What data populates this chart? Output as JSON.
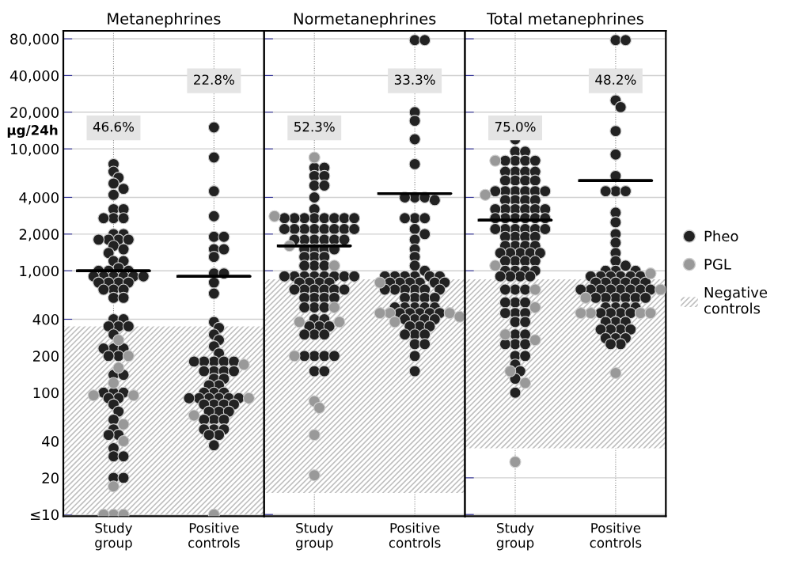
{
  "chart_data": [
    {
      "type": "scatter",
      "title": "Metanephrines",
      "ylabel": "µg/24h",
      "categories": [
        "Study group",
        "Positive controls"
      ],
      "log": true,
      "grid": true,
      "legend": false,
      "marker": "circle",
      "ylim": [
        9.7,
        93000
      ],
      "yticks": [
        {
          "value": 10,
          "label": "≤10"
        },
        20,
        40,
        100,
        200,
        400,
        {
          "value": 1000,
          "label": "1,000"
        },
        {
          "value": 2000,
          "label": "2,000"
        },
        {
          "value": 4000,
          "label": "4,000"
        },
        {
          "value": 10000,
          "label": "10,000"
        },
        {
          "value": 20000,
          "label": "20,000"
        },
        {
          "value": 40000,
          "label": "40,000"
        },
        {
          "value": 80000,
          "label": "80,000"
        }
      ],
      "series": [
        {
          "color": "#222222",
          "x": [
            "Study group",
            "Study group",
            "Study group",
            "Study group",
            "Study group",
            "Study group",
            "Study group",
            "Study group",
            "Study group",
            "Study group",
            "Study group",
            "Study group",
            "Study group",
            "Study group",
            "Study group",
            "Study group",
            "Study group",
            "Study group",
            "Study group",
            "Study group",
            "Study group",
            "Study group",
            "Study group",
            "Study group",
            "Study group",
            "Study group",
            "Study group",
            "Study group",
            "Study group",
            "Study group",
            "Study group",
            "Study group",
            "Study group",
            "Study group",
            "Study group",
            "Study group",
            "Study group",
            "Study group",
            "Study group",
            "Study group",
            "Study group",
            "Study group",
            "Study group",
            "Study group",
            "Study group",
            "Study group",
            "Study group",
            "Study group",
            "Study group",
            "Study group",
            "Study group",
            "Study group",
            "Study group",
            "Study group",
            "Study group",
            "Study group",
            "Study group",
            "Study group",
            "Study group",
            "Study group",
            "Study group",
            "Study group",
            "Study group",
            "Study group",
            "Study group",
            "Study group",
            "Study group",
            "Study group",
            "Study group",
            "Study group",
            "Positive controls",
            "Positive controls",
            "Positive controls",
            "Positive controls",
            "Positive controls",
            "Positive controls",
            "Positive controls",
            "Positive controls",
            "Positive controls",
            "Positive controls",
            "Positive controls",
            "Positive controls",
            "Positive controls",
            "Positive controls",
            "Positive controls",
            "Positive controls",
            "Positive controls",
            "Positive controls",
            "Positive controls",
            "Positive controls",
            "Positive controls",
            "Positive controls",
            "Positive controls",
            "Positive controls",
            "Positive controls",
            "Positive controls",
            "Positive controls",
            "Positive controls",
            "Positive controls",
            "Positive controls",
            "Positive controls",
            "Positive controls",
            "Positive controls",
            "Positive controls",
            "Positive controls",
            "Positive controls",
            "Positive controls",
            "Positive controls",
            "Positive controls",
            "Positive controls",
            "Positive controls",
            "Positive controls",
            "Positive controls",
            "Positive controls",
            "Positive controls",
            "Positive controls",
            "Positive controls",
            "Positive controls",
            "Positive controls",
            "Positive controls",
            "Positive controls",
            "Positive controls",
            "Positive controls",
            "Positive controls",
            "Positive controls",
            "Positive controls",
            "Positive controls"
          ],
          "values": [
            7500,
            6500,
            5800,
            5200,
            4700,
            4200,
            3200,
            3200,
            2700,
            2700,
            2700,
            2000,
            2000,
            1800,
            1800,
            1800,
            1800,
            1600,
            1500,
            1400,
            1200,
            1200,
            1050,
            1000,
            1000,
            1000,
            900,
            900,
            900,
            900,
            900,
            900,
            800,
            800,
            800,
            800,
            700,
            700,
            700,
            600,
            600,
            400,
            400,
            350,
            350,
            350,
            300,
            230,
            230,
            230,
            200,
            200,
            140,
            140,
            100,
            100,
            100,
            90,
            90,
            80,
            70,
            60,
            50,
            45,
            45,
            35,
            30,
            30,
            20,
            20,
            15000,
            8500,
            4500,
            2800,
            1900,
            1900,
            1500,
            1500,
            1300,
            950,
            950,
            800,
            650,
            380,
            340,
            300,
            270,
            240,
            210,
            180,
            180,
            180,
            180,
            180,
            150,
            150,
            150,
            150,
            130,
            130,
            115,
            115,
            100,
            100,
            100,
            90,
            90,
            90,
            90,
            90,
            90,
            80,
            80,
            80,
            80,
            70,
            70,
            70,
            60,
            60,
            60,
            50,
            50,
            50,
            45,
            45,
            37
          ]
        },
        {
          "color": "#999999",
          "x": [
            "Study group",
            "Study group",
            "Study group",
            "Study group",
            "Study group",
            "Study group",
            "Study group",
            "Study group",
            "Study group",
            "Study group",
            "Study group",
            "Study group",
            "Positive controls",
            "Positive controls",
            "Positive controls",
            "Positive controls"
          ],
          "values": [
            270,
            200,
            160,
            120,
            95,
            95,
            55,
            40,
            17,
            10,
            10,
            10,
            170,
            90,
            65,
            10
          ]
        },
        {
          "type": "box",
          "color": "#000000",
          "boxes": [
            {
              "low": 1000,
              "q1": 1000,
              "median": 1000,
              "q3": 1000,
              "high": 1000
            },
            {
              "low": 900,
              "q1": 900,
              "median": 900,
              "q3": 900,
              "high": 900
            }
          ]
        }
      ],
      "bands": [
        {
          "axis": "y",
          "from": 10,
          "to": 350,
          "color": "#c0c0c0"
        }
      ],
      "annotations": [
        "46.6%",
        "22.8%"
      ]
    },
    {
      "type": "scatter",
      "title": "Normetanephrines",
      "categories": [
        "Study group",
        "Positive controls"
      ],
      "log": true,
      "grid": true,
      "legend": false,
      "marker": "circle",
      "tick_labels": "x",
      "ylim": [
        9.7,
        93000
      ],
      "yticks": [
        10,
        20,
        40,
        100,
        200,
        400,
        1000,
        2000,
        4000,
        10000,
        20000,
        40000,
        80000
      ],
      "series": [
        {
          "color": "#222222",
          "x": [
            "Study group",
            "Study group",
            "Study group",
            "Study group",
            "Study group",
            "Study group",
            "Study group",
            "Study group",
            "Study group",
            "Study group",
            "Study group",
            "Study group",
            "Study group",
            "Study group",
            "Study group",
            "Study group",
            "Study group",
            "Study group",
            "Study group",
            "Study group",
            "Study group",
            "Study group",
            "Study group",
            "Study group",
            "Study group",
            "Study group",
            "Study group",
            "Study group",
            "Study group",
            "Study group",
            "Study group",
            "Study group",
            "Study group",
            "Study group",
            "Study group",
            "Study group",
            "Study group",
            "Study group",
            "Study group",
            "Study group",
            "Study group",
            "Study group",
            "Study group",
            "Study group",
            "Study group",
            "Study group",
            "Study group",
            "Study group",
            "Study group",
            "Study group",
            "Study group",
            "Study group",
            "Study group",
            "Study group",
            "Study group",
            "Study group",
            "Study group",
            "Study group",
            "Study group",
            "Study group",
            "Study group",
            "Study group",
            "Study group",
            "Study group",
            "Study group",
            "Study group",
            "Study group",
            "Study group",
            "Study group",
            "Study group",
            "Study group",
            "Study group",
            "Study group",
            "Study group",
            "Study group",
            "Study group",
            "Study group",
            "Study group",
            "Study group",
            "Positive controls",
            "Positive controls",
            "Positive controls",
            "Positive controls",
            "Positive controls",
            "Positive controls",
            "Positive controls",
            "Positive controls",
            "Positive controls",
            "Positive controls",
            "Positive controls",
            "Positive controls",
            "Positive controls",
            "Positive controls",
            "Positive controls",
            "Positive controls",
            "Positive controls",
            "Positive controls",
            "Positive controls",
            "Positive controls",
            "Positive controls",
            "Positive controls",
            "Positive controls",
            "Positive controls",
            "Positive controls",
            "Positive controls",
            "Positive controls",
            "Positive controls",
            "Positive controls",
            "Positive controls",
            "Positive controls",
            "Positive controls",
            "Positive controls",
            "Positive controls",
            "Positive controls",
            "Positive controls",
            "Positive controls",
            "Positive controls",
            "Positive controls",
            "Positive controls",
            "Positive controls",
            "Positive controls",
            "Positive controls",
            "Positive controls",
            "Positive controls",
            "Positive controls",
            "Positive controls",
            "Positive controls",
            "Positive controls",
            "Positive controls",
            "Positive controls",
            "Positive controls",
            "Positive controls",
            "Positive controls",
            "Positive controls",
            "Positive controls",
            "Positive controls",
            "Positive controls",
            "Positive controls",
            "Positive controls",
            "Positive controls",
            "Positive controls",
            "Positive controls",
            "Positive controls",
            "Positive controls",
            "Positive controls"
          ],
          "values": [
            7000,
            7000,
            6000,
            6000,
            5000,
            5000,
            4000,
            3200,
            2700,
            2700,
            2700,
            2700,
            2700,
            2700,
            2700,
            2700,
            2200,
            2200,
            2200,
            2200,
            2200,
            2200,
            2200,
            2200,
            1800,
            1800,
            1800,
            1800,
            1800,
            1800,
            1500,
            1500,
            1500,
            1500,
            1300,
            1300,
            1300,
            1100,
            1100,
            1100,
            900,
            900,
            900,
            900,
            900,
            900,
            900,
            900,
            800,
            800,
            800,
            800,
            700,
            700,
            700,
            700,
            700,
            700,
            600,
            600,
            600,
            600,
            500,
            500,
            500,
            400,
            400,
            350,
            350,
            350,
            300,
            300,
            300,
            200,
            200,
            200,
            200,
            150,
            150,
            78000,
            78000,
            20000,
            17000,
            12000,
            7500,
            4000,
            4000,
            4000,
            3800,
            2700,
            2700,
            2700,
            2200,
            2000,
            1800,
            1500,
            1300,
            1100,
            1000,
            900,
            900,
            900,
            900,
            900,
            900,
            800,
            800,
            800,
            800,
            800,
            800,
            700,
            700,
            700,
            700,
            700,
            700,
            600,
            600,
            600,
            600,
            500,
            500,
            500,
            500,
            500,
            450,
            450,
            450,
            450,
            450,
            400,
            400,
            400,
            400,
            350,
            350,
            350,
            300,
            300,
            300,
            250,
            250,
            200,
            150
          ]
        },
        {
          "color": "#999999",
          "x": [
            "Study group",
            "Study group",
            "Study group",
            "Study group",
            "Study group",
            "Study group",
            "Study group",
            "Study group",
            "Study group",
            "Study group",
            "Study group",
            "Study group",
            "Positive controls",
            "Positive controls",
            "Positive controls",
            "Positive controls",
            "Positive controls",
            "Positive controls"
          ],
          "values": [
            8500,
            2800,
            1600,
            1100,
            500,
            380,
            380,
            200,
            85,
            75,
            45,
            21,
            800,
            450,
            450,
            450,
            420,
            380
          ]
        },
        {
          "type": "box",
          "color": "#000000",
          "boxes": [
            {
              "low": 1600,
              "q1": 1600,
              "median": 1600,
              "q3": 1600,
              "high": 1600
            },
            {
              "low": 4300,
              "q1": 4300,
              "median": 4300,
              "q3": 4300,
              "high": 4300
            }
          ]
        }
      ],
      "bands": [
        {
          "axis": "y",
          "from": 15,
          "to": 850,
          "color": "#c0c0c0"
        }
      ],
      "annotations": [
        "52.3%",
        "33.3%"
      ]
    },
    {
      "type": "scatter",
      "title": "Total metanephrines",
      "categories": [
        "Study group",
        "Positive controls"
      ],
      "log": true,
      "grid": true,
      "legend": "right",
      "marker": "circle",
      "tick_labels": "x",
      "ylim": [
        9.7,
        93000
      ],
      "yticks": [
        10,
        20,
        40,
        100,
        200,
        400,
        1000,
        2000,
        4000,
        10000,
        20000,
        40000,
        80000
      ],
      "series": [
        {
          "name": "Pheo",
          "color": "#222222",
          "x": [
            "Study group",
            "Study group",
            "Study group",
            "Study group",
            "Study group",
            "Study group",
            "Study group",
            "Study group",
            "Study group",
            "Study group",
            "Study group",
            "Study group",
            "Study group",
            "Study group",
            "Study group",
            "Study group",
            "Study group",
            "Study group",
            "Study group",
            "Study group",
            "Study group",
            "Study group",
            "Study group",
            "Study group",
            "Study group",
            "Study group",
            "Study group",
            "Study group",
            "Study group",
            "Study group",
            "Study group",
            "Study group",
            "Study group",
            "Study group",
            "Study group",
            "Study group",
            "Study group",
            "Study group",
            "Study group",
            "Study group",
            "Study group",
            "Study group",
            "Study group",
            "Study group",
            "Study group",
            "Study group",
            "Study group",
            "Study group",
            "Study group",
            "Study group",
            "Study group",
            "Study group",
            "Study group",
            "Study group",
            "Study group",
            "Study group",
            "Study group",
            "Study group",
            "Study group",
            "Study group",
            "Study group",
            "Study group",
            "Study group",
            "Study group",
            "Study group",
            "Study group",
            "Study group",
            "Study group",
            "Study group",
            "Study group",
            "Study group",
            "Study group",
            "Study group",
            "Study group",
            "Study group",
            "Study group",
            "Study group",
            "Study group",
            "Study group",
            "Study group",
            "Study group",
            "Study group",
            "Study group",
            "Study group",
            "Study group",
            "Study group",
            "Study group",
            "Study group",
            "Study group",
            "Study group",
            "Positive controls",
            "Positive controls",
            "Positive controls",
            "Positive controls",
            "Positive controls",
            "Positive controls",
            "Positive controls",
            "Positive controls",
            "Positive controls",
            "Positive controls",
            "Positive controls",
            "Positive controls",
            "Positive controls",
            "Positive controls",
            "Positive controls",
            "Positive controls",
            "Positive controls",
            "Positive controls",
            "Positive controls",
            "Positive controls",
            "Positive controls",
            "Positive controls",
            "Positive controls",
            "Positive controls",
            "Positive controls",
            "Positive controls",
            "Positive controls",
            "Positive controls",
            "Positive controls",
            "Positive controls",
            "Positive controls",
            "Positive controls",
            "Positive controls",
            "Positive controls",
            "Positive controls",
            "Positive controls",
            "Positive controls",
            "Positive controls",
            "Positive controls",
            "Positive controls",
            "Positive controls",
            "Positive controls",
            "Positive controls",
            "Positive controls",
            "Positive controls",
            "Positive controls",
            "Positive controls",
            "Positive controls",
            "Positive controls",
            "Positive controls",
            "Positive controls",
            "Positive controls",
            "Positive controls",
            "Positive controls",
            "Positive controls",
            "Positive controls",
            "Positive controls",
            "Positive controls",
            "Positive controls",
            "Positive controls",
            "Positive controls",
            "Positive controls",
            "Positive controls",
            "Positive controls",
            "Positive controls",
            "Positive controls"
          ],
          "values": [
            12000,
            9500,
            9500,
            8000,
            8000,
            8000,
            8000,
            6500,
            6500,
            6500,
            6500,
            5500,
            5500,
            5500,
            5500,
            4500,
            4500,
            4500,
            4500,
            4500,
            4500,
            3800,
            3800,
            3800,
            3800,
            3200,
            3200,
            3200,
            3200,
            3200,
            3200,
            2700,
            2700,
            2700,
            2700,
            2700,
            2700,
            2200,
            2200,
            2200,
            2200,
            2200,
            2200,
            1900,
            1900,
            1900,
            1900,
            1600,
            1600,
            1600,
            1600,
            1400,
            1400,
            1400,
            1400,
            1400,
            1200,
            1200,
            1200,
            1200,
            1000,
            1000,
            1000,
            1000,
            900,
            900,
            900,
            900,
            700,
            700,
            700,
            550,
            550,
            550,
            450,
            450,
            450,
            380,
            380,
            300,
            300,
            250,
            250,
            250,
            200,
            200,
            170,
            150,
            130,
            100,
            78000,
            78000,
            25000,
            22000,
            14000,
            9000,
            6000,
            4500,
            4500,
            4500,
            3000,
            2500,
            2000,
            1700,
            1400,
            1200,
            1100,
            1000,
            1000,
            1000,
            900,
            900,
            900,
            900,
            900,
            900,
            800,
            800,
            800,
            800,
            800,
            800,
            700,
            700,
            700,
            700,
            700,
            700,
            700,
            700,
            600,
            600,
            600,
            600,
            600,
            600,
            500,
            500,
            500,
            500,
            450,
            450,
            450,
            450,
            380,
            380,
            380,
            330,
            330,
            330,
            330,
            280,
            280,
            280,
            250,
            250
          ]
        },
        {
          "name": "PGL",
          "color": "#999999",
          "x": [
            "Study group",
            "Study group",
            "Study group",
            "Study group",
            "Study group",
            "Study group",
            "Study group",
            "Study group",
            "Study group",
            "Study group",
            "Positive controls",
            "Positive controls",
            "Positive controls",
            "Positive controls",
            "Positive controls",
            "Positive controls",
            "Positive controls",
            "Positive controls"
          ],
          "values": [
            8000,
            4200,
            1100,
            700,
            500,
            300,
            270,
            150,
            120,
            27,
            950,
            700,
            600,
            450,
            450,
            450,
            450,
            145
          ]
        },
        {
          "type": "box",
          "color": "#000000",
          "boxes": [
            {
              "low": 2600,
              "q1": 2600,
              "median": 2600,
              "q3": 2600,
              "high": 2600
            },
            {
              "low": 5500,
              "q1": 5500,
              "median": 5500,
              "q3": 5500,
              "high": 5500
            }
          ]
        }
      ],
      "bands": [
        {
          "axis": "y",
          "from": 35,
          "to": 850,
          "color": "#c0c0c0",
          "label": "Negative controls"
        }
      ],
      "annotations": [
        "75.0%",
        "48.2%"
      ]
    }
  ]
}
